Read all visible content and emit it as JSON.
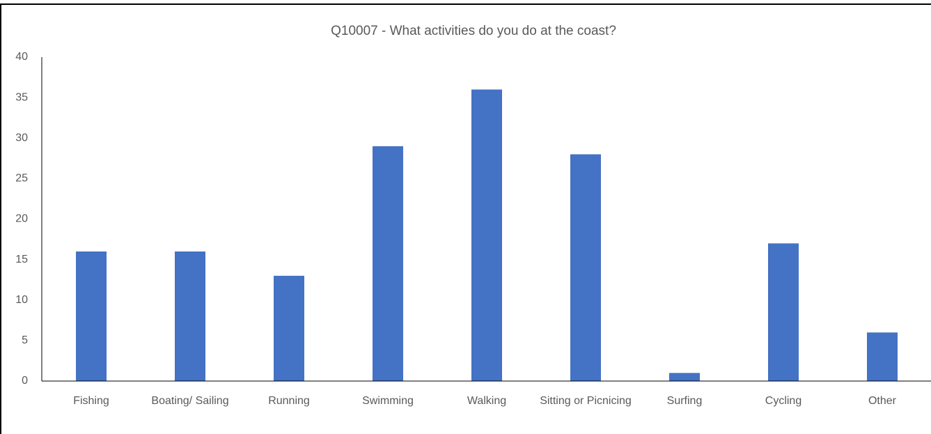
{
  "chart_data": {
    "type": "bar",
    "title": "Q10007 - What activities do you do at the coast?",
    "categories": [
      "Fishing",
      "Boating/ Sailing",
      "Running",
      "Swimming",
      "Walking",
      "Sitting or Picnicing",
      "Surfing",
      "Cycling",
      "Other"
    ],
    "values": [
      16,
      16,
      13,
      29,
      36,
      28,
      1,
      17,
      6
    ],
    "color": "#4472c4",
    "ylim": [
      0,
      40
    ],
    "yticks": [
      0,
      5,
      10,
      15,
      20,
      25,
      30,
      35,
      40
    ],
    "grid": false
  }
}
